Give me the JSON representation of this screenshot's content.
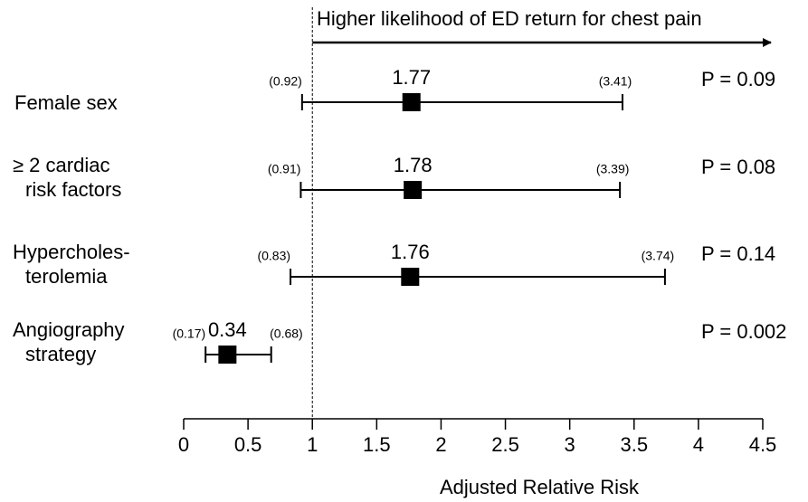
{
  "chart_data": {
    "type": "forest",
    "annotation": "Higher likelihood of ED return for chest pain",
    "categories": [
      [
        "Female sex"
      ],
      [
        "≥ 2 cardiac",
        "risk factors"
      ],
      [
        "Hypercholes-",
        "terolemia"
      ],
      [
        "Angiography",
        "strategy"
      ]
    ],
    "values": [
      1.77,
      1.78,
      1.76,
      0.34
    ],
    "lower": [
      0.92,
      0.91,
      0.83,
      0.17
    ],
    "lower_labels": [
      "(0.92)",
      "(0.91)",
      "(0.83)",
      "(0.17)"
    ],
    "upper": [
      3.41,
      3.39,
      3.74,
      0.68
    ],
    "upper_labels": [
      "(3.41)",
      "(3.39)",
      "(3.74)",
      "(0.68)"
    ],
    "p_values": [
      "P = 0.09",
      "P = 0.08",
      "P = 0.14",
      "P = 0.002"
    ],
    "reference_line": 1,
    "xlabel": "Adjusted Relative Risk",
    "xlim": [
      0,
      4.5
    ],
    "xticks": [
      0,
      0.5,
      1,
      1.5,
      2,
      2.5,
      3,
      3.5,
      4,
      4.5
    ],
    "color": "#000000"
  }
}
